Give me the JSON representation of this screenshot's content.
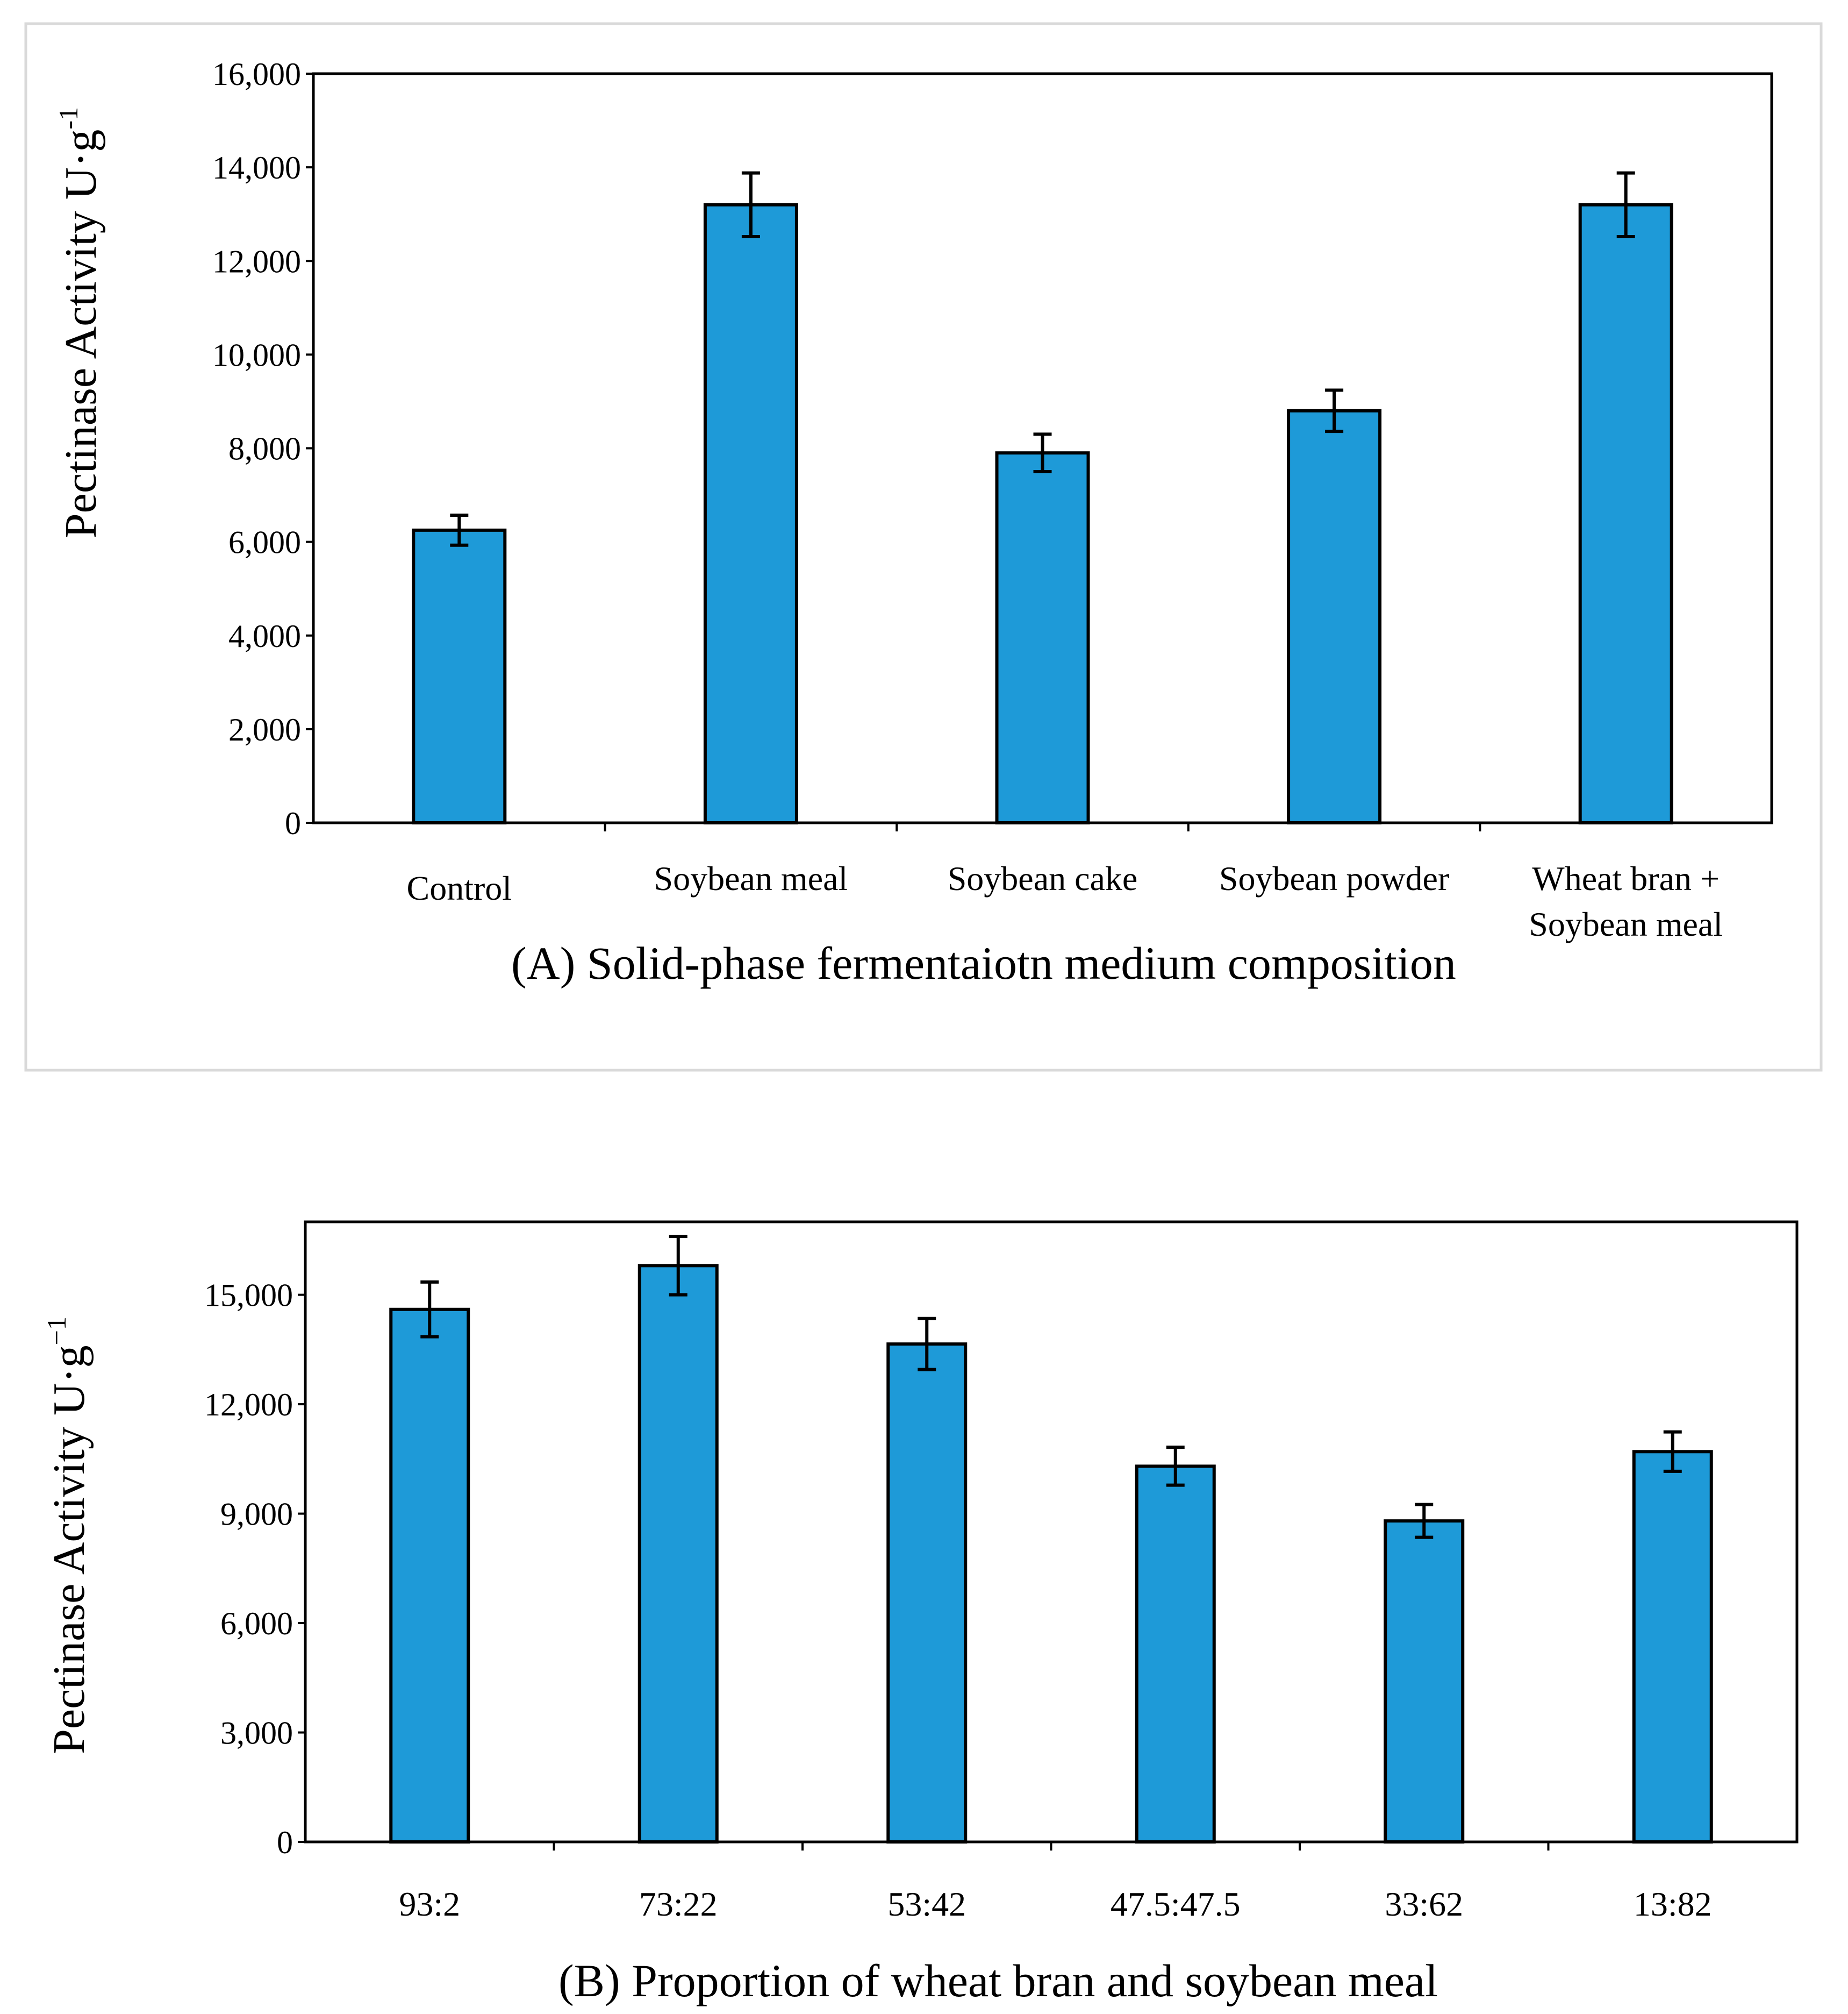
{
  "colors": {
    "bar": "#1E9AD8",
    "stroke": "#000000",
    "panel_border": "#D9D9D9"
  },
  "chart_data": [
    {
      "type": "bar",
      "panel": "A",
      "title": "(A) Solid-phase fermentaiotn medium composition",
      "ylabel": "Pectinase Activity U·g",
      "ylabel_exp": "-1",
      "ylim": [
        0,
        16000
      ],
      "yticks": [
        0,
        2000,
        4000,
        6000,
        8000,
        10000,
        12000,
        14000,
        16000
      ],
      "ytick_labels": [
        "0",
        "2,000",
        "4,000",
        "6,000",
        "8,000",
        "10,000",
        "12,000",
        "14,000",
        "16,000"
      ],
      "categories": [
        "Control",
        "Soybean meal",
        "Soybean cake",
        "Soybean powder",
        [
          "Wheat bran +",
          "Soybean meal"
        ]
      ],
      "values": [
        6250,
        13200,
        7900,
        8800,
        13200
      ],
      "errors": [
        320,
        680,
        400,
        440,
        680
      ],
      "grid": false
    },
    {
      "type": "bar",
      "panel": "B",
      "title": "(B) Proportion of wheat bran and soybean meal",
      "ylabel": "Pectinase Activity U·g",
      "ylabel_exp": "−1",
      "ylim": [
        0,
        17000
      ],
      "yticks": [
        0,
        3000,
        6000,
        9000,
        12000,
        15000
      ],
      "ytick_labels": [
        "0",
        "3,000",
        "6,000",
        "9,000",
        "12,000",
        "15,000"
      ],
      "categories": [
        "93:2",
        "73:22",
        "53:42",
        "47.5:47.5",
        "33:62",
        "13:82"
      ],
      "values": [
        14600,
        15800,
        13650,
        10300,
        8800,
        10700
      ],
      "errors": [
        750,
        800,
        700,
        520,
        450,
        540
      ],
      "grid": false
    }
  ]
}
